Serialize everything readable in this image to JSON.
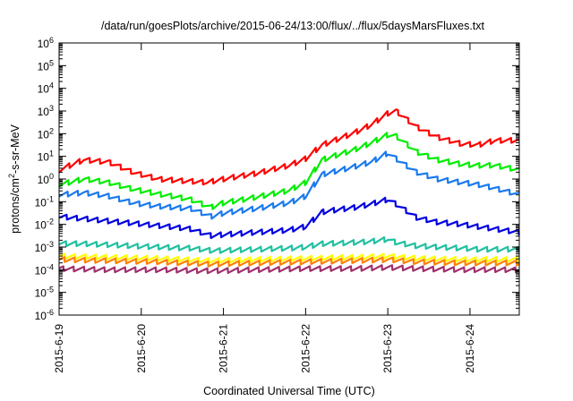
{
  "chart_data": {
    "type": "line",
    "title": "/data/run/goesPlots/archive/2015-06-24/13:00/flux/../flux/5daysMarsFluxes.txt",
    "xlabel": "Coordinated Universal Time (UTC)",
    "ylabel_parts": [
      "protons/cm",
      "2",
      "-s-sr-MeV"
    ],
    "x_tick_labels": [
      "2015-6-19",
      "2015-6-20",
      "2015-6-21",
      "2015-6-22",
      "2015-6-23",
      "2015-6-24"
    ],
    "xlim_days": [
      0,
      5.6
    ],
    "y_scale": "log",
    "ylim": [
      1e-06,
      1000000.0
    ],
    "y_ticks": [
      {
        "base": "10",
        "exp": "-6"
      },
      {
        "base": "10",
        "exp": "-5"
      },
      {
        "base": "10",
        "exp": "-4"
      },
      {
        "base": "10",
        "exp": "-3"
      },
      {
        "base": "10",
        "exp": "-2"
      },
      {
        "base": "10",
        "exp": "-1"
      },
      {
        "base": "10",
        "exp": "0"
      },
      {
        "base": "10",
        "exp": "1"
      },
      {
        "base": "10",
        "exp": "2"
      },
      {
        "base": "10",
        "exp": "3"
      },
      {
        "base": "10",
        "exp": "4"
      },
      {
        "base": "10",
        "exp": "5"
      },
      {
        "base": "10",
        "exp": "6"
      }
    ],
    "grid": false,
    "sawtooth_period_days": 0.125,
    "series": [
      {
        "color": "#ff0000",
        "keypoints": [
          [
            0,
            0.4
          ],
          [
            0.3,
            0.85
          ],
          [
            0.6,
            0.75
          ],
          [
            0.9,
            0.3
          ],
          [
            1.2,
            0.0
          ],
          [
            1.6,
            -0.1
          ],
          [
            1.8,
            -0.15
          ],
          [
            2.0,
            0.0
          ],
          [
            2.4,
            0.25
          ],
          [
            2.8,
            0.6
          ],
          [
            3.0,
            0.9
          ],
          [
            3.2,
            1.5
          ],
          [
            3.6,
            2.05
          ],
          [
            3.8,
            2.4
          ],
          [
            4.0,
            2.9
          ],
          [
            4.1,
            3.0
          ],
          [
            4.35,
            2.3
          ],
          [
            4.6,
            1.85
          ],
          [
            4.9,
            1.55
          ],
          [
            5.1,
            1.5
          ],
          [
            5.3,
            1.7
          ],
          [
            5.6,
            1.7
          ]
        ]
      },
      {
        "color": "#00ee00",
        "keypoints": [
          [
            0,
            -0.25
          ],
          [
            0.3,
            0.0
          ],
          [
            0.6,
            -0.15
          ],
          [
            0.9,
            -0.45
          ],
          [
            1.2,
            -0.65
          ],
          [
            1.6,
            -0.9
          ],
          [
            1.85,
            -1.25
          ],
          [
            2.0,
            -1.05
          ],
          [
            2.4,
            -0.8
          ],
          [
            2.8,
            -0.5
          ],
          [
            3.0,
            -0.15
          ],
          [
            3.2,
            0.85
          ],
          [
            3.6,
            1.3
          ],
          [
            3.8,
            1.6
          ],
          [
            4.0,
            1.95
          ],
          [
            4.1,
            1.9
          ],
          [
            4.35,
            1.2
          ],
          [
            4.6,
            0.85
          ],
          [
            4.9,
            0.65
          ],
          [
            5.1,
            0.6
          ],
          [
            5.3,
            0.6
          ],
          [
            5.6,
            0.4
          ]
        ]
      },
      {
        "color": "#1a7aee",
        "keypoints": [
          [
            0,
            -0.7
          ],
          [
            0.3,
            -0.6
          ],
          [
            0.6,
            -0.75
          ],
          [
            0.9,
            -1.05
          ],
          [
            1.2,
            -1.2
          ],
          [
            1.6,
            -1.3
          ],
          [
            1.85,
            -1.65
          ],
          [
            2.0,
            -1.5
          ],
          [
            2.4,
            -1.3
          ],
          [
            2.8,
            -1.05
          ],
          [
            3.0,
            -0.75
          ],
          [
            3.2,
            0.2
          ],
          [
            3.6,
            0.55
          ],
          [
            3.8,
            0.75
          ],
          [
            4.0,
            1.15
          ],
          [
            4.1,
            0.9
          ],
          [
            4.35,
            0.3
          ],
          [
            4.6,
            0.0
          ],
          [
            4.9,
            -0.15
          ],
          [
            5.1,
            -0.25
          ],
          [
            5.3,
            -0.4
          ],
          [
            5.6,
            -0.7
          ]
        ]
      },
      {
        "color": "#0000e0",
        "keypoints": [
          [
            0,
            -1.65
          ],
          [
            0.3,
            -1.75
          ],
          [
            0.6,
            -1.85
          ],
          [
            0.9,
            -1.95
          ],
          [
            1.2,
            -2.05
          ],
          [
            1.6,
            -2.2
          ],
          [
            1.85,
            -2.5
          ],
          [
            2.0,
            -2.45
          ],
          [
            2.4,
            -2.35
          ],
          [
            2.8,
            -2.25
          ],
          [
            3.0,
            -2.1
          ],
          [
            3.2,
            -1.45
          ],
          [
            3.6,
            -1.25
          ],
          [
            3.8,
            -1.1
          ],
          [
            4.0,
            -0.9
          ],
          [
            4.1,
            -1.1
          ],
          [
            4.35,
            -1.7
          ],
          [
            4.6,
            -1.9
          ],
          [
            4.9,
            -2.0
          ],
          [
            5.1,
            -2.1
          ],
          [
            5.3,
            -2.2
          ],
          [
            5.6,
            -2.35
          ]
        ]
      },
      {
        "color": "#20c0a0",
        "keypoints": [
          [
            0,
            -2.85
          ],
          [
            0.3,
            -2.85
          ],
          [
            0.6,
            -2.9
          ],
          [
            0.9,
            -2.95
          ],
          [
            1.2,
            -3.0
          ],
          [
            1.6,
            -3.05
          ],
          [
            1.85,
            -3.15
          ],
          [
            2.0,
            -3.15
          ],
          [
            2.4,
            -3.1
          ],
          [
            2.8,
            -3.05
          ],
          [
            3.0,
            -3.0
          ],
          [
            3.2,
            -2.85
          ],
          [
            3.6,
            -2.8
          ],
          [
            3.8,
            -2.75
          ],
          [
            4.0,
            -2.65
          ],
          [
            4.1,
            -2.8
          ],
          [
            4.35,
            -2.95
          ],
          [
            4.6,
            -3.0
          ],
          [
            4.9,
            -3.05
          ],
          [
            5.1,
            -3.1
          ],
          [
            5.3,
            -3.1
          ],
          [
            5.6,
            -3.1
          ]
        ]
      },
      {
        "color": "#ffff00",
        "keypoints": [
          [
            0,
            -3.4
          ],
          [
            0.6,
            -3.45
          ],
          [
            1.2,
            -3.5
          ],
          [
            1.85,
            -3.6
          ],
          [
            2.4,
            -3.55
          ],
          [
            3.0,
            -3.5
          ],
          [
            3.6,
            -3.45
          ],
          [
            4.0,
            -3.4
          ],
          [
            4.35,
            -3.5
          ],
          [
            4.9,
            -3.55
          ],
          [
            5.6,
            -3.55
          ]
        ]
      },
      {
        "color": "#ff8000",
        "keypoints": [
          [
            0,
            -3.55
          ],
          [
            0.6,
            -3.6
          ],
          [
            1.2,
            -3.65
          ],
          [
            1.85,
            -3.75
          ],
          [
            2.4,
            -3.7
          ],
          [
            3.0,
            -3.65
          ],
          [
            3.6,
            -3.6
          ],
          [
            4.0,
            -3.55
          ],
          [
            4.35,
            -3.65
          ],
          [
            4.9,
            -3.7
          ],
          [
            5.6,
            -3.7
          ]
        ]
      },
      {
        "color": "#a0306c",
        "keypoints": [
          [
            0,
            -3.95
          ],
          [
            0.6,
            -4.0
          ],
          [
            1.2,
            -4.0
          ],
          [
            1.85,
            -4.05
          ],
          [
            2.4,
            -4.0
          ],
          [
            3.0,
            -3.95
          ],
          [
            3.6,
            -3.95
          ],
          [
            4.0,
            -3.9
          ],
          [
            4.35,
            -3.95
          ],
          [
            4.9,
            -4.0
          ],
          [
            5.6,
            -4.0
          ]
        ]
      }
    ]
  }
}
